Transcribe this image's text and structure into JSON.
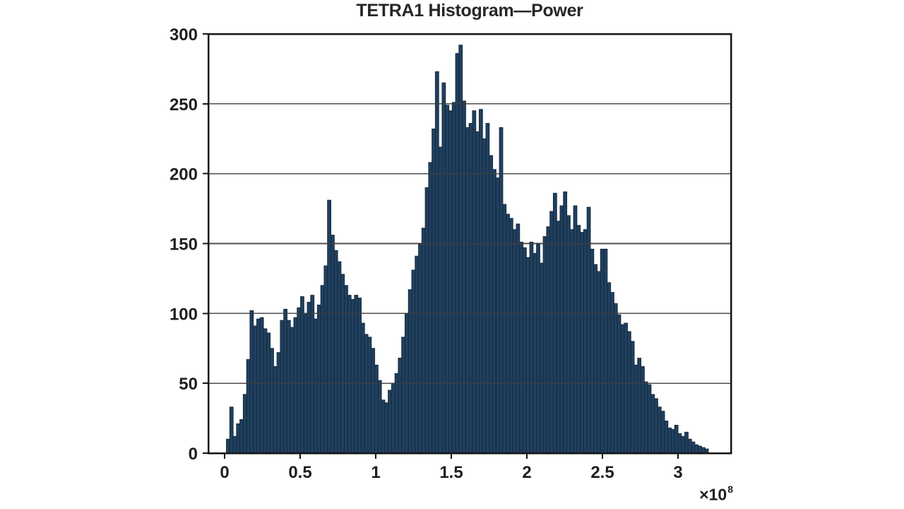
{
  "chart_data": {
    "type": "bar",
    "subtype": "histogram",
    "title": "TETRA1 Histogram—Power",
    "xlabel": "",
    "ylabel": "",
    "legend": "none",
    "grid": "horizontal",
    "grid_over_bars": true,
    "ylim": [
      0,
      300
    ],
    "xlim": [
      -0.11,
      3.35
    ],
    "x_unit_scale": "1e8",
    "x_multiplier_label": "×10",
    "x_multiplier_exponent": "8",
    "y_ticks": [
      0,
      50,
      100,
      150,
      200,
      250,
      300
    ],
    "x_tick_values": [
      0,
      0.5,
      1,
      1.5,
      2,
      2.5,
      3
    ],
    "x_tick_labels": [
      "0",
      "0.5",
      "1",
      "1.5",
      "2",
      "2.5",
      "3"
    ],
    "bin_start": 0.012,
    "bin_width": 0.0223,
    "values": [
      10,
      33,
      12,
      21,
      24,
      42,
      67,
      102,
      91,
      96,
      97,
      89,
      86,
      75,
      62,
      72,
      95,
      103,
      95,
      90,
      97,
      104,
      112,
      100,
      108,
      113,
      96,
      106,
      120,
      134,
      181,
      156,
      145,
      137,
      128,
      120,
      113,
      110,
      113,
      111,
      93,
      85,
      83,
      75,
      63,
      52,
      38,
      36,
      45,
      50,
      57,
      68,
      83,
      100,
      117,
      131,
      141,
      150,
      161,
      190,
      208,
      232,
      273,
      219,
      265,
      249,
      245,
      251,
      286,
      292,
      252,
      233,
      236,
      245,
      230,
      246,
      225,
      236,
      213,
      203,
      197,
      233,
      178,
      171,
      168,
      160,
      164,
      151,
      147,
      140,
      151,
      143,
      150,
      136,
      155,
      162,
      173,
      186,
      166,
      177,
      187,
      170,
      160,
      177,
      163,
      158,
      160,
      176,
      146,
      135,
      130,
      146,
      146,
      122,
      115,
      107,
      99,
      92,
      93,
      87,
      80,
      63,
      68,
      62,
      51,
      49,
      42,
      39,
      33,
      30,
      23,
      18,
      17,
      20,
      14,
      12,
      15,
      10,
      8,
      6,
      5,
      4,
      3
    ],
    "colors": {
      "background": "#ffffff",
      "bar_fill": "#20405e",
      "bar_edge": "#152a40",
      "grid_line": "#3d3d3d",
      "axis_frame": "#141414",
      "tick_label": "#1f1f1f",
      "title_text": "#262626"
    }
  }
}
